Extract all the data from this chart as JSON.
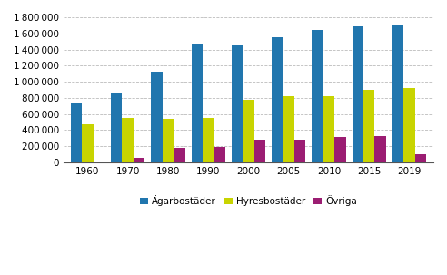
{
  "years": [
    1960,
    1970,
    1980,
    1990,
    2000,
    2005,
    2010,
    2015,
    2019
  ],
  "agarbostader": [
    730000,
    850000,
    1130000,
    1470000,
    1455000,
    1555000,
    1645000,
    1690000,
    1710000
  ],
  "hyresbostader": [
    470000,
    550000,
    535000,
    550000,
    775000,
    820000,
    820000,
    900000,
    920000
  ],
  "ovriga": [
    0,
    55000,
    175000,
    185000,
    275000,
    275000,
    315000,
    330000,
    100000
  ],
  "colors": {
    "agarbostader": "#2176ae",
    "hyresbostader": "#c8d400",
    "ovriga": "#9b1d72"
  },
  "ylim": [
    0,
    1800000
  ],
  "yticks": [
    0,
    200000,
    400000,
    600000,
    800000,
    1000000,
    1200000,
    1400000,
    1600000,
    1800000
  ],
  "legend_labels": [
    "Ägarbostäder",
    "Hyresbostäder",
    "Övriga"
  ],
  "bar_width": 0.28,
  "background_color": "#ffffff",
  "grid_color": "#bbbbbb"
}
